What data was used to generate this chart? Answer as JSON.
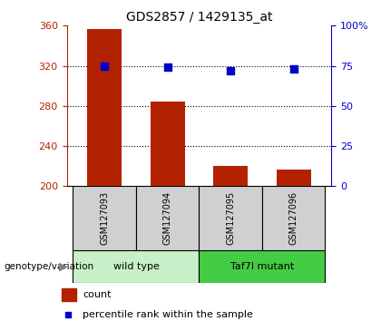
{
  "title": "GDS2857 / 1429135_at",
  "samples": [
    "GSM127093",
    "GSM127094",
    "GSM127095",
    "GSM127096"
  ],
  "counts": [
    357,
    284,
    220,
    217
  ],
  "percentile_pct": [
    75,
    74,
    72,
    73
  ],
  "ylim_left": [
    200,
    360
  ],
  "ylim_right": [
    0,
    100
  ],
  "yticks_left": [
    200,
    240,
    280,
    320,
    360
  ],
  "yticks_right": [
    0,
    25,
    50,
    75,
    100
  ],
  "yticklabels_right": [
    "0",
    "25",
    "50",
    "75",
    "100%"
  ],
  "bar_color": "#b22200",
  "dot_color": "#0000cc",
  "group1_label": "wild type",
  "group2_label": "Taf7l mutant",
  "group1_bg": "#c8f0c8",
  "group2_bg": "#44cc44",
  "sample_box_bg": "#d0d0d0",
  "legend_count_color": "#b22200",
  "legend_dot_color": "#0000cc",
  "genotype_label": "genotype/variation",
  "background_color": "#ffffff"
}
